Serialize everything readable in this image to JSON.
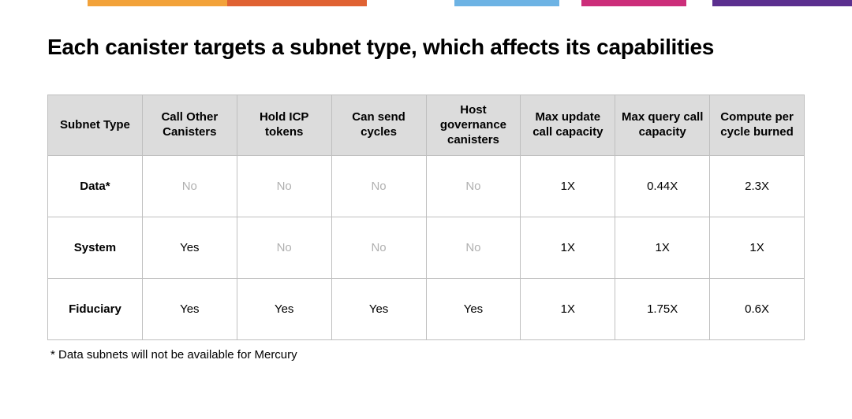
{
  "stripe": {
    "segments": [
      {
        "color": "#ffffff",
        "flex": 1.0
      },
      {
        "color": "#f2a23a",
        "flex": 1.6
      },
      {
        "color": "#e06233",
        "flex": 1.6
      },
      {
        "color": "#ffffff",
        "flex": 1.0
      },
      {
        "color": "#6db3e4",
        "flex": 1.2
      },
      {
        "color": "#ffffff",
        "flex": 0.25
      },
      {
        "color": "#cc2e7a",
        "flex": 1.2
      },
      {
        "color": "#ffffff",
        "flex": 0.3
      },
      {
        "color": "#5b2f8f",
        "flex": 1.6
      }
    ]
  },
  "title": "Each canister targets a subnet type, which affects its capabilities",
  "table": {
    "columns": [
      "Subnet Type",
      "Call Other Canisters",
      "Hold ICP tokens",
      "Can send cycles",
      "Host governance canisters",
      "Max update call capacity",
      "Max query call capacity",
      "Compute per cycle burned"
    ],
    "rows": [
      {
        "label": "Data*",
        "cells": [
          {
            "text": "No",
            "muted": true
          },
          {
            "text": "No",
            "muted": true
          },
          {
            "text": "No",
            "muted": true
          },
          {
            "text": "No",
            "muted": true
          },
          {
            "text": "1X",
            "muted": false
          },
          {
            "text": "0.44X",
            "muted": false
          },
          {
            "text": "2.3X",
            "muted": false
          }
        ]
      },
      {
        "label": "System",
        "cells": [
          {
            "text": "Yes",
            "muted": false
          },
          {
            "text": "No",
            "muted": true
          },
          {
            "text": "No",
            "muted": true
          },
          {
            "text": "No",
            "muted": true
          },
          {
            "text": "1X",
            "muted": false
          },
          {
            "text": "1X",
            "muted": false
          },
          {
            "text": "1X",
            "muted": false
          }
        ]
      },
      {
        "label": "Fiduciary",
        "cells": [
          {
            "text": "Yes",
            "muted": false
          },
          {
            "text": "Yes",
            "muted": false
          },
          {
            "text": "Yes",
            "muted": false
          },
          {
            "text": "Yes",
            "muted": false
          },
          {
            "text": "1X",
            "muted": false
          },
          {
            "text": "1.75X",
            "muted": false
          },
          {
            "text": "0.6X",
            "muted": false
          }
        ]
      }
    ]
  },
  "footnote": "* Data subnets will not be available for Mercury"
}
